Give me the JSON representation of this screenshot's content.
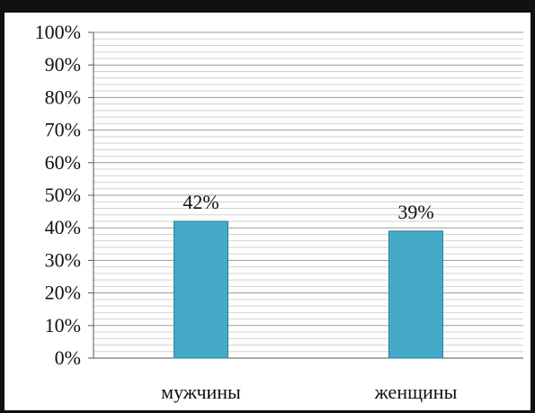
{
  "chart_data": {
    "type": "bar",
    "categories": [
      "мужчины",
      "женщины"
    ],
    "values": [
      42,
      39
    ],
    "value_labels": [
      "42%",
      "39%"
    ],
    "ylim": [
      0,
      100
    ],
    "yticks": [
      "0%",
      "10%",
      "20%",
      "30%",
      "40%",
      "50%",
      "60%",
      "70%",
      "80%",
      "90%",
      "100%"
    ],
    "grid": true,
    "legend": "none",
    "bar_color": "#45aac8",
    "bar_edge_color": "#2a7f99"
  }
}
